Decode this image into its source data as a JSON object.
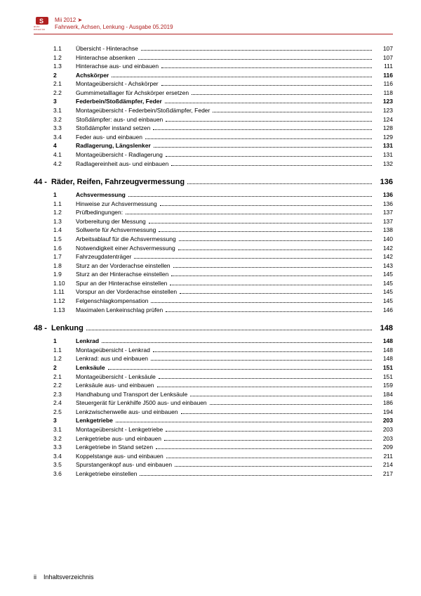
{
  "header": {
    "model": "Mii 2012 ➤",
    "subtitle": "Fahrwerk, Achsen, Lenkung - Ausgabe 05.2019",
    "logo_sub": "auto emoción"
  },
  "footer": {
    "page_roman": "ii",
    "label": "Inhaltsverzeichnis"
  },
  "sections": [
    {
      "entries": [
        {
          "num": "1.1",
          "label": "Übersicht - Hinterachse",
          "page": "107"
        },
        {
          "num": "1.2",
          "label": "Hinterachse absenken",
          "page": "107"
        },
        {
          "num": "1.3",
          "label": "Hinterachse aus- und einbauen",
          "page": "111"
        },
        {
          "num": "2",
          "label": "Achskörper",
          "page": "116",
          "bold": true
        },
        {
          "num": "2.1",
          "label": "Montageübersicht - Achskörper",
          "page": "116"
        },
        {
          "num": "2.2",
          "label": "Gummimetalllager für Achskörper ersetzen",
          "page": "118"
        },
        {
          "num": "3",
          "label": "Federbein/Stoßdämpfer, Feder",
          "page": "123",
          "bold": true
        },
        {
          "num": "3.1",
          "label": "Montageübersicht - Federbein/Stoßdämpfer, Feder",
          "page": "123"
        },
        {
          "num": "3.2",
          "label": "Stoßdämpfer: aus- und einbauen",
          "page": "124"
        },
        {
          "num": "3.3",
          "label": "Stoßdämpfer instand setzen",
          "page": "128"
        },
        {
          "num": "3.4",
          "label": "Feder aus- und einbauen",
          "page": "129"
        },
        {
          "num": "4",
          "label": "Radlagerung, Längslenker",
          "page": "131",
          "bold": true
        },
        {
          "num": "4.1",
          "label": "Montageübersicht - Radlagerung",
          "page": "131"
        },
        {
          "num": "4.2",
          "label": "Radlagereinheit aus- und einbauen",
          "page": "132"
        }
      ]
    },
    {
      "chapter_num": "44 -",
      "chapter_title": "Räder, Reifen, Fahrzeugvermessung",
      "chapter_page": "136",
      "entries": [
        {
          "num": "1",
          "label": "Achsvermessung",
          "page": "136",
          "bold": true
        },
        {
          "num": "1.1",
          "label": "Hinweise zur Achsvermessung",
          "page": "136"
        },
        {
          "num": "1.2",
          "label": "Prüfbedingungen:",
          "page": "137"
        },
        {
          "num": "1.3",
          "label": "Vorbereitung der Messung",
          "page": "137"
        },
        {
          "num": "1.4",
          "label": "Sollwerte für Achsvermessung",
          "page": "138"
        },
        {
          "num": "1.5",
          "label": "Arbeitsablauf für die Achsvermessung",
          "page": "140"
        },
        {
          "num": "1.6",
          "label": "Notwendigkeit einer Achsvermessung",
          "page": "142"
        },
        {
          "num": "1.7",
          "label": "Fahrzeugdatenträger",
          "page": "142"
        },
        {
          "num": "1.8",
          "label": "Sturz an der Vorderachse einstellen",
          "page": "143"
        },
        {
          "num": "1.9",
          "label": "Sturz an der Hinterachse einstellen",
          "page": "145"
        },
        {
          "num": "1.10",
          "label": "Spur an der Hinterachse einstellen",
          "page": "145"
        },
        {
          "num": "1.11",
          "label": "Vorspur an der Vorderachse einstellen",
          "page": "145"
        },
        {
          "num": "1.12",
          "label": "Felgenschlagkompensation",
          "page": "145"
        },
        {
          "num": "1.13",
          "label": "Maximalen Lenkeinschlag prüfen",
          "page": "146"
        }
      ]
    },
    {
      "chapter_num": "48 -",
      "chapter_title": "Lenkung",
      "chapter_page": "148",
      "entries": [
        {
          "num": "1",
          "label": "Lenkrad",
          "page": "148",
          "bold": true
        },
        {
          "num": "1.1",
          "label": "Montageübersicht - Lenkrad",
          "page": "148"
        },
        {
          "num": "1.2",
          "label": "Lenkrad: aus und einbauen",
          "page": "148"
        },
        {
          "num": "2",
          "label": "Lenksäule",
          "page": "151",
          "bold": true
        },
        {
          "num": "2.1",
          "label": "Montageübersicht - Lenksäule",
          "page": "151"
        },
        {
          "num": "2.2",
          "label": "Lenksäule aus- und einbauen",
          "page": "159"
        },
        {
          "num": "2.3",
          "label": "Handhabung und Transport der Lenksäule",
          "page": "184"
        },
        {
          "num": "2.4",
          "label": "Steuergerät für Lenkhilfe J500 aus- und einbauen",
          "page": "186"
        },
        {
          "num": "2.5",
          "label": "Lenkzwischenwelle aus- und einbauen",
          "page": "194"
        },
        {
          "num": "3",
          "label": "Lenkgetriebe",
          "page": "203",
          "bold": true
        },
        {
          "num": "3.1",
          "label": "Montageübersicht - Lenkgetriebe",
          "page": "203"
        },
        {
          "num": "3.2",
          "label": "Lenkgetriebe aus- und einbauen",
          "page": "203"
        },
        {
          "num": "3.3",
          "label": "Lenkgetriebe in Stand setzen",
          "page": "209"
        },
        {
          "num": "3.4",
          "label": "Koppelstange aus- und einbauen",
          "page": "211"
        },
        {
          "num": "3.5",
          "label": "Spurstangenkopf aus- und einbauen",
          "page": "214"
        },
        {
          "num": "3.6",
          "label": "Lenkgetriebe einstellen",
          "page": "217"
        }
      ]
    }
  ]
}
